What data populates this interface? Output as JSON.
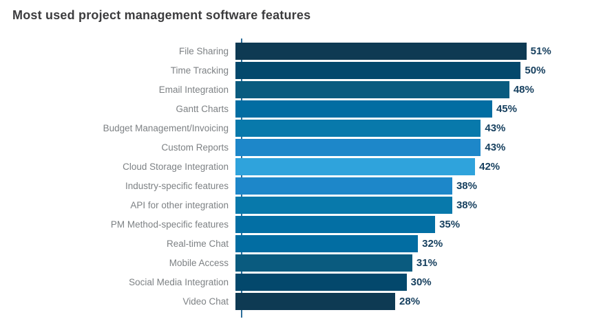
{
  "title": "Most used project management software features",
  "colors": {
    "title_text": "#3c3c3e",
    "category_label": "#7d8184",
    "value_label": "#17405f",
    "axis_line": "#2e6f9b",
    "background": "#ffffff"
  },
  "chart_data": {
    "type": "bar",
    "orientation": "horizontal",
    "title": "Most used project management software features",
    "xlabel": "",
    "ylabel": "",
    "xlim": [
      0,
      66
    ],
    "grid": false,
    "legend": false,
    "value_suffix": "%",
    "categories": [
      "File Sharing",
      "Time Tracking",
      "Email Integration",
      "Gantt Charts",
      "Budget Management/Invoicing",
      "Custom Reports",
      "Cloud Storage Integration",
      "Industry-specific features",
      "API for other integration",
      "PM Method-specific features",
      "Real-time Chat",
      "Mobile Access",
      "Social Media Integration",
      "Video Chat"
    ],
    "values": [
      51,
      50,
      48,
      45,
      43,
      43,
      42,
      38,
      38,
      35,
      32,
      31,
      30,
      28
    ],
    "bar_colors": [
      "#0e3a53",
      "#03486c",
      "#0a5b7f",
      "#026da2",
      "#0879ab",
      "#1d87c9",
      "#2fa3dc",
      "#1d87c9",
      "#0879ab",
      "#036fa4",
      "#026da2",
      "#0a5b7f",
      "#03486c",
      "#0e3a53"
    ]
  }
}
